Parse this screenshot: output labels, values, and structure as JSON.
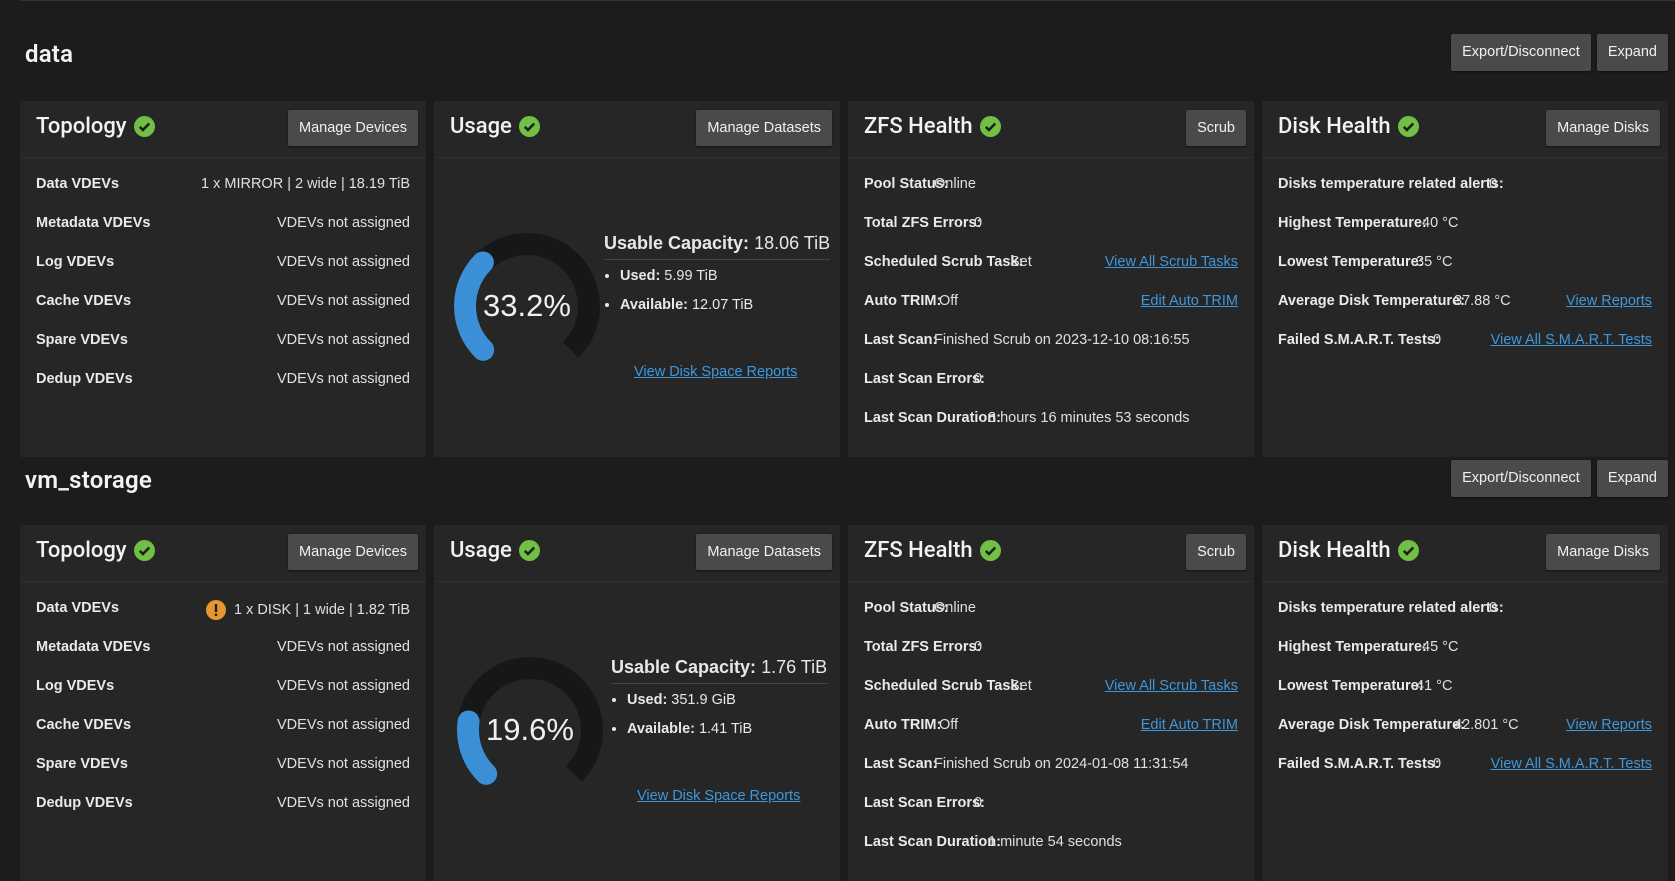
{
  "pools": [
    {
      "name": "data",
      "actions": {
        "export": "Export/Disconnect",
        "expand": "Expand"
      },
      "topology": {
        "title": "Topology",
        "button": "Manage Devices",
        "rows": [
          {
            "label": "Data VDEVs",
            "value": "1 x MIRROR | 2 wide | 18.19 TiB",
            "warning": false
          },
          {
            "label": "Metadata VDEVs",
            "value": "VDEVs not assigned"
          },
          {
            "label": "Log VDEVs",
            "value": "VDEVs not assigned"
          },
          {
            "label": "Cache VDEVs",
            "value": "VDEVs not assigned"
          },
          {
            "label": "Spare VDEVs",
            "value": "VDEVs not assigned"
          },
          {
            "label": "Dedup VDEVs",
            "value": "VDEVs not assigned"
          }
        ]
      },
      "usage": {
        "title": "Usage",
        "button": "Manage Datasets",
        "percent_label": "33.2%",
        "percent": 33.2,
        "capacity_label": "Usable Capacity:",
        "capacity_value": "18.06 TiB",
        "used_label": "Used:",
        "used_value": "5.99 TiB",
        "available_label": "Available:",
        "available_value": "12.07 TiB",
        "link": "View Disk Space Reports"
      },
      "zfs": {
        "title": "ZFS Health",
        "button": "Scrub",
        "rows": [
          {
            "label": "Pool Status:",
            "value": "Online"
          },
          {
            "label": "Total ZFS Errors:",
            "value": "0"
          },
          {
            "label": "Scheduled Scrub Task:",
            "value": "Set",
            "link": "View All Scrub Tasks"
          },
          {
            "label": "Auto TRIM:",
            "value": "Off",
            "link": "Edit Auto TRIM"
          },
          {
            "label": "Last Scan:",
            "value": "Finished Scrub on 2023-12-10 08:16:55"
          },
          {
            "label": "Last Scan Errors:",
            "value": "0"
          },
          {
            "label": "Last Scan Duration:",
            "value": "8 hours 16 minutes 53 seconds"
          }
        ]
      },
      "disk": {
        "title": "Disk Health",
        "button": "Manage Disks",
        "rows": [
          {
            "label": "Disks temperature related alerts:",
            "value": "0"
          },
          {
            "label": "Highest Temperature:",
            "value": "40 °C"
          },
          {
            "label": "Lowest Temperature:",
            "value": "35 °C"
          },
          {
            "label": "Average Disk Temperature:",
            "value": "37.88 °C",
            "link": "View Reports"
          },
          {
            "label": "Failed S.M.A.R.T. Tests:",
            "value": "0",
            "link": "View All S.M.A.R.T. Tests"
          }
        ]
      }
    },
    {
      "name": "vm_storage",
      "actions": {
        "export": "Export/Disconnect",
        "expand": "Expand"
      },
      "topology": {
        "title": "Topology",
        "button": "Manage Devices",
        "rows": [
          {
            "label": "Data VDEVs",
            "value": "1 x DISK | 1 wide | 1.82 TiB",
            "warning": true
          },
          {
            "label": "Metadata VDEVs",
            "value": "VDEVs not assigned"
          },
          {
            "label": "Log VDEVs",
            "value": "VDEVs not assigned"
          },
          {
            "label": "Cache VDEVs",
            "value": "VDEVs not assigned"
          },
          {
            "label": "Spare VDEVs",
            "value": "VDEVs not assigned"
          },
          {
            "label": "Dedup VDEVs",
            "value": "VDEVs not assigned"
          }
        ]
      },
      "usage": {
        "title": "Usage",
        "button": "Manage Datasets",
        "percent_label": "19.6%",
        "percent": 19.6,
        "capacity_label": "Usable Capacity:",
        "capacity_value": "1.76 TiB",
        "used_label": "Used:",
        "used_value": "351.9 GiB",
        "available_label": "Available:",
        "available_value": "1.41 TiB",
        "link": "View Disk Space Reports"
      },
      "zfs": {
        "title": "ZFS Health",
        "button": "Scrub",
        "rows": [
          {
            "label": "Pool Status:",
            "value": "Online"
          },
          {
            "label": "Total ZFS Errors:",
            "value": "0"
          },
          {
            "label": "Scheduled Scrub Task:",
            "value": "Set",
            "link": "View All Scrub Tasks"
          },
          {
            "label": "Auto TRIM:",
            "value": "Off",
            "link": "Edit Auto TRIM"
          },
          {
            "label": "Last Scan:",
            "value": "Finished Scrub on 2024-01-08 11:31:54"
          },
          {
            "label": "Last Scan Errors:",
            "value": "0"
          },
          {
            "label": "Last Scan Duration:",
            "value": "1 minute 54 seconds"
          }
        ]
      },
      "disk": {
        "title": "Disk Health",
        "button": "Manage Disks",
        "rows": [
          {
            "label": "Disks temperature related alerts:",
            "value": "0"
          },
          {
            "label": "Highest Temperature:",
            "value": "45 °C"
          },
          {
            "label": "Lowest Temperature:",
            "value": "41 °C"
          },
          {
            "label": "Average Disk Temperature:",
            "value": "42.801 °C",
            "link": "View Reports"
          },
          {
            "label": "Failed S.M.A.R.T. Tests:",
            "value": "0",
            "link": "View All S.M.A.R.T. Tests"
          }
        ]
      }
    }
  ],
  "colors": {
    "ok": "#71bf44",
    "warning": "#e6972e",
    "gauge_fill": "#3a8fd6",
    "gauge_track": "#171717",
    "link": "#3f97db"
  },
  "icons": {
    "ok": "check-circle-icon",
    "warning": "exclamation-circle-icon"
  }
}
